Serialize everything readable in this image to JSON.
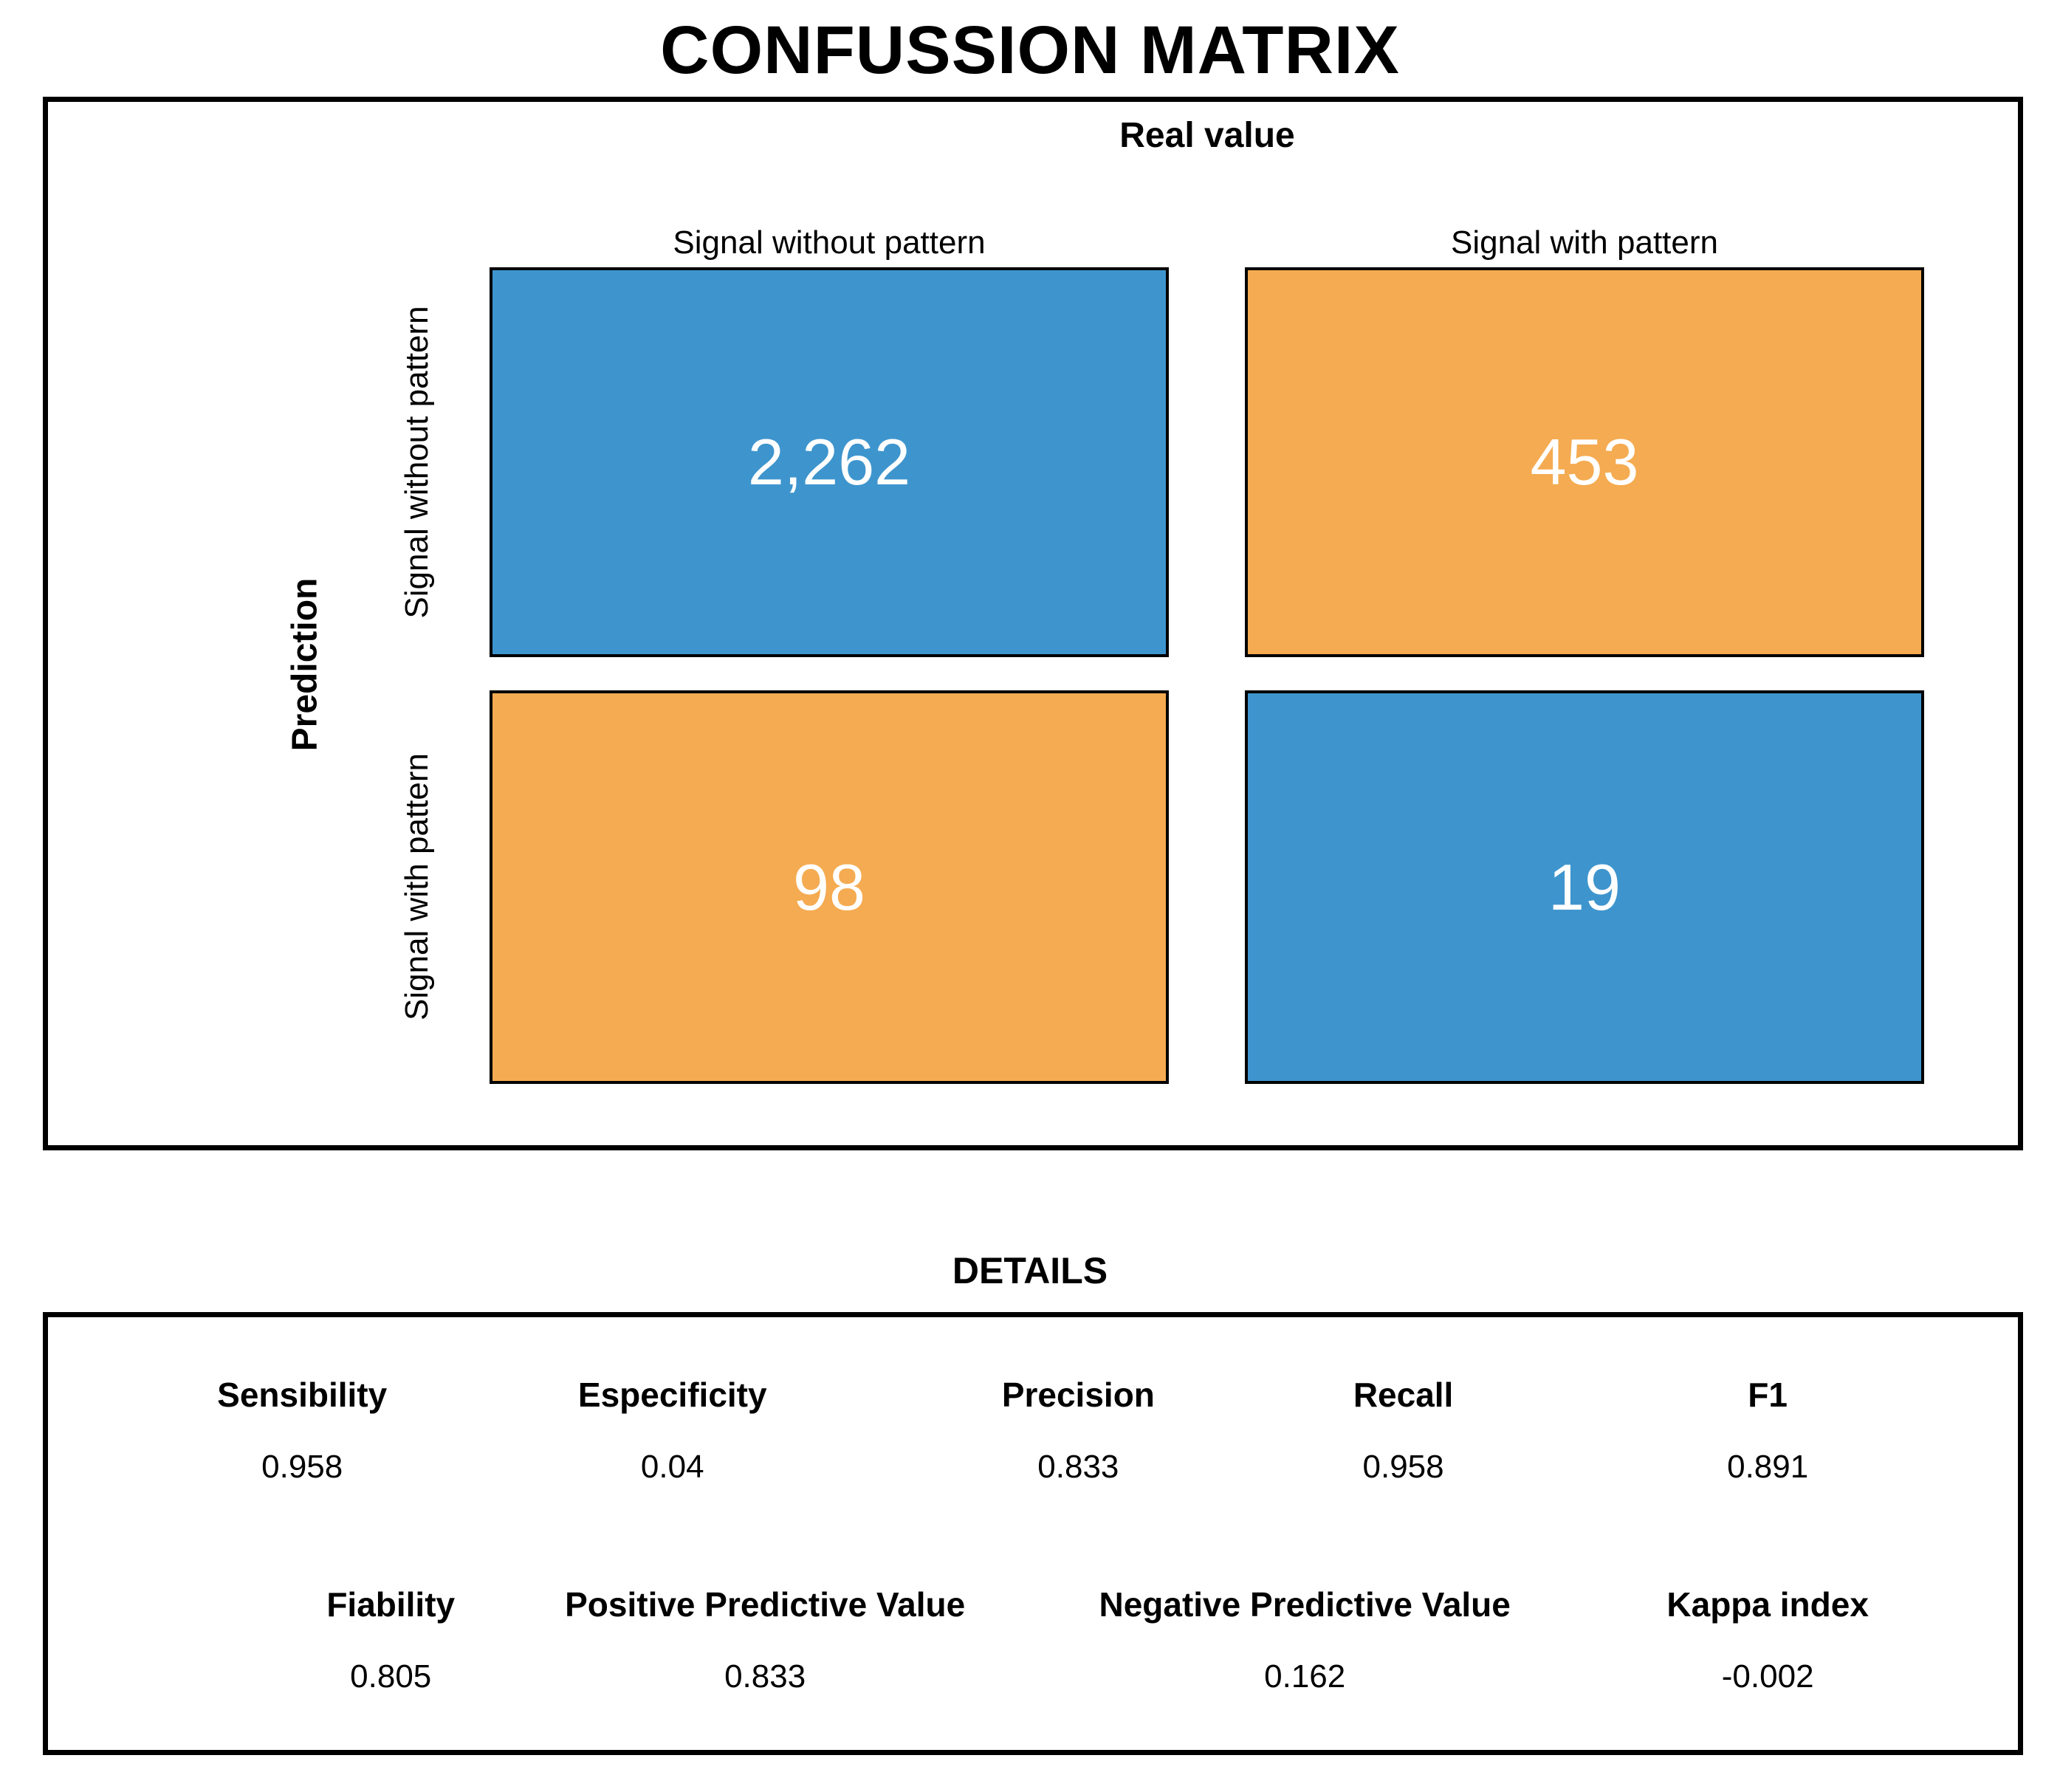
{
  "title": "CONFUSSION MATRIX",
  "colors": {
    "blue": "#3E95CD",
    "orange": "#F5AB51",
    "cell_text": "#FFFFFF",
    "border": "#000000"
  },
  "matrix": {
    "top_axis_label": "Real value",
    "left_axis_label": "Prediction",
    "col_headers": [
      "Signal without pattern",
      "Signal with pattern"
    ],
    "row_headers": [
      "Signal without pattern",
      "Signal with pattern"
    ],
    "cells": [
      {
        "row": "Signal without pattern",
        "col": "Signal without pattern",
        "value": "2,262",
        "color": "#3E95CD"
      },
      {
        "row": "Signal without pattern",
        "col": "Signal with pattern",
        "value": "453",
        "color": "#F5AB51"
      },
      {
        "row": "Signal with pattern",
        "col": "Signal without pattern",
        "value": "98",
        "color": "#F5AB51"
      },
      {
        "row": "Signal with pattern",
        "col": "Signal with pattern",
        "value": "19",
        "color": "#3E95CD"
      }
    ]
  },
  "details": {
    "heading": "DETAILS",
    "row1": [
      {
        "label": "Sensibility",
        "value": "0.958"
      },
      {
        "label": "Especificity",
        "value": "0.04"
      },
      {
        "label": "Precision",
        "value": "0.833"
      },
      {
        "label": "Recall",
        "value": "0.958"
      },
      {
        "label": "F1",
        "value": "0.891"
      }
    ],
    "row2": [
      {
        "label": "Fiability",
        "value": "0.805"
      },
      {
        "label": "Positive Predictive Value",
        "value": "0.833"
      },
      {
        "label": "Negative Predictive Value",
        "value": "0.162"
      },
      {
        "label": "Kappa index",
        "value": "-0.002"
      }
    ]
  },
  "chart_data": {
    "type": "heatmap",
    "title": "CONFUSSION MATRIX",
    "x_axis_label": "Real value",
    "y_axis_label": "Prediction",
    "x_categories": [
      "Signal without pattern",
      "Signal with pattern"
    ],
    "y_categories": [
      "Signal without pattern",
      "Signal with pattern"
    ],
    "values": [
      [
        2262,
        453
      ],
      [
        98,
        19
      ]
    ],
    "cell_colors": [
      [
        "#3E95CD",
        "#F5AB51"
      ],
      [
        "#F5AB51",
        "#3E95CD"
      ]
    ],
    "legend": "none",
    "metrics": {
      "Sensibility": 0.958,
      "Especificity": 0.04,
      "Precision": 0.833,
      "Recall": 0.958,
      "F1": 0.891,
      "Fiability": 0.805,
      "Positive Predictive Value": 0.833,
      "Negative Predictive Value": 0.162,
      "Kappa index": -0.002
    }
  }
}
